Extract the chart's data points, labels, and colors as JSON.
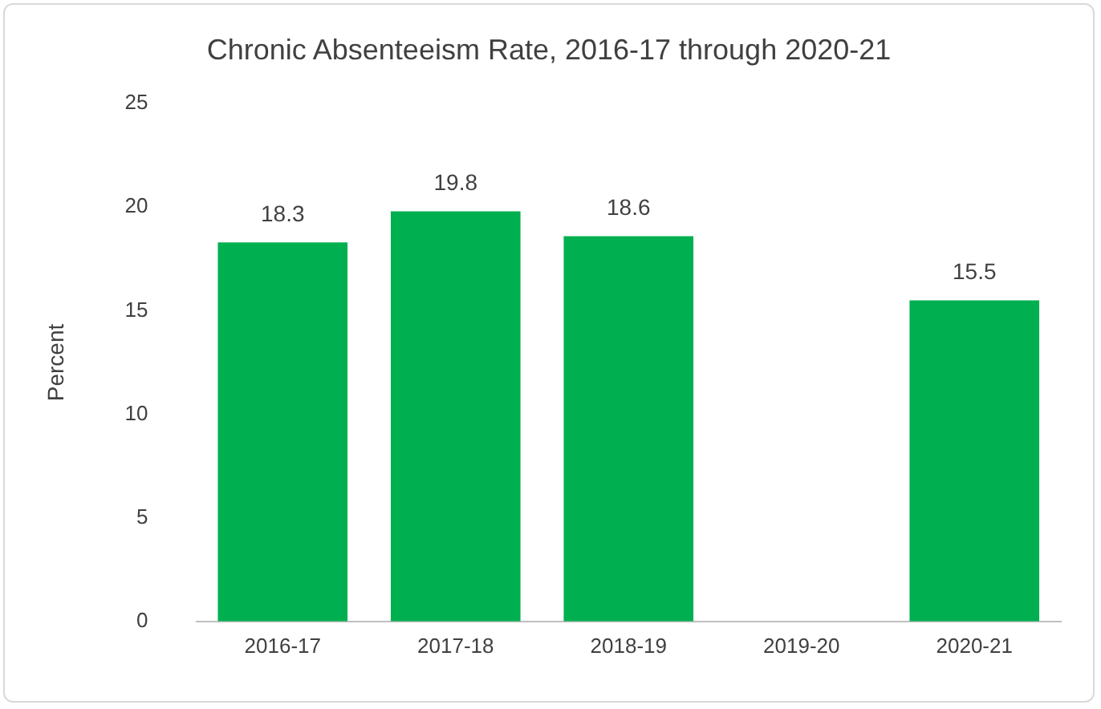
{
  "chart_data": {
    "type": "bar",
    "title": "Chronic Absenteeism Rate, 2016-17 through 2020-21",
    "ylabel": "Percent",
    "categories": [
      "2016-17",
      "2017-18",
      "2018-19",
      "2019-20",
      "2020-21"
    ],
    "values": [
      18.3,
      19.8,
      18.6,
      null,
      15.5
    ],
    "color": "#00b050",
    "ylim": [
      0,
      25
    ],
    "yticks": [
      0,
      5,
      10,
      15,
      20,
      25
    ],
    "grid": false,
    "legend": false,
    "data_labels": true
  }
}
